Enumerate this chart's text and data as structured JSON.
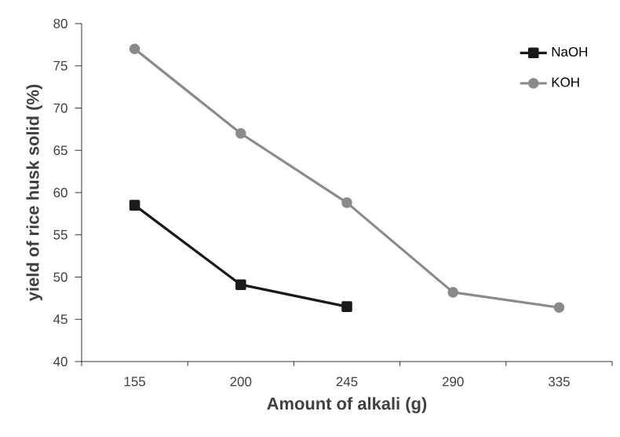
{
  "chart_data": {
    "type": "line",
    "xlabel": "Amount of alkali (g)",
    "ylabel": "yield of rice husk solid (%)",
    "categories": [
      "155",
      "200",
      "245",
      "290",
      "335"
    ],
    "series": [
      {
        "name": "NaOH",
        "color": "#1a1a1a",
        "marker": "square",
        "values": [
          58.5,
          49.1,
          46.5,
          null,
          null
        ]
      },
      {
        "name": "KOH",
        "color": "#8a8a8a",
        "marker": "circle",
        "values": [
          77,
          67,
          58.8,
          48.2,
          46.4
        ]
      }
    ],
    "ylim": [
      40,
      80
    ],
    "yticks": [
      40,
      45,
      50,
      55,
      60,
      65,
      70,
      75,
      80
    ],
    "grid": false,
    "legend": "top right"
  }
}
